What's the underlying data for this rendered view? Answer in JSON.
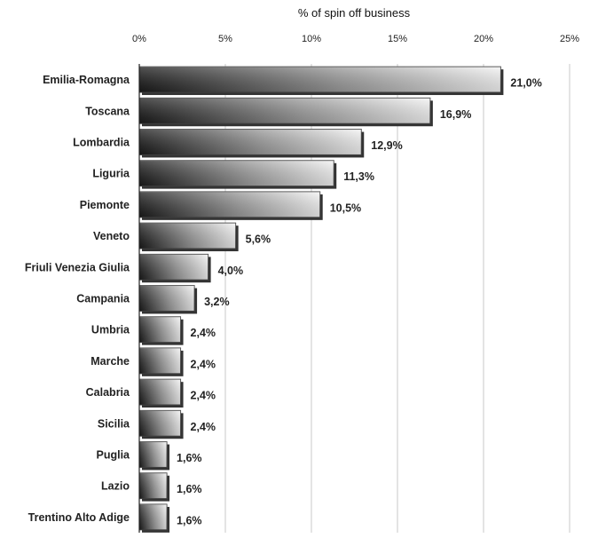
{
  "chart_data": {
    "type": "bar",
    "orientation": "horizontal",
    "xlabel": "% of spin off business",
    "xlim": [
      0,
      25
    ],
    "x_ticks": [
      "0%",
      "5%",
      "10%",
      "15%",
      "20%",
      "25%"
    ],
    "grid": true,
    "categories": [
      "Emilia-Romagna",
      "Toscana",
      "Lombardia",
      "Liguria",
      "Piemonte",
      "Veneto",
      "Friuli Venezia Giulia",
      "Campania",
      "Umbria",
      "Marche",
      "Calabria",
      "Sicilia",
      "Puglia",
      "Lazio",
      "Trentino Alto Adige"
    ],
    "values": [
      21.0,
      16.9,
      12.9,
      11.3,
      10.5,
      5.6,
      4.0,
      3.2,
      2.4,
      2.4,
      2.4,
      2.4,
      1.6,
      1.6,
      1.6
    ],
    "value_labels": [
      "21,0%",
      "16,9%",
      "12,9%",
      "11,3%",
      "10,5%",
      "5,6%",
      "4,0%",
      "3,2%",
      "2,4%",
      "2,4%",
      "2,4%",
      "2,4%",
      "1,6%",
      "1,6%",
      "1,6%"
    ]
  }
}
